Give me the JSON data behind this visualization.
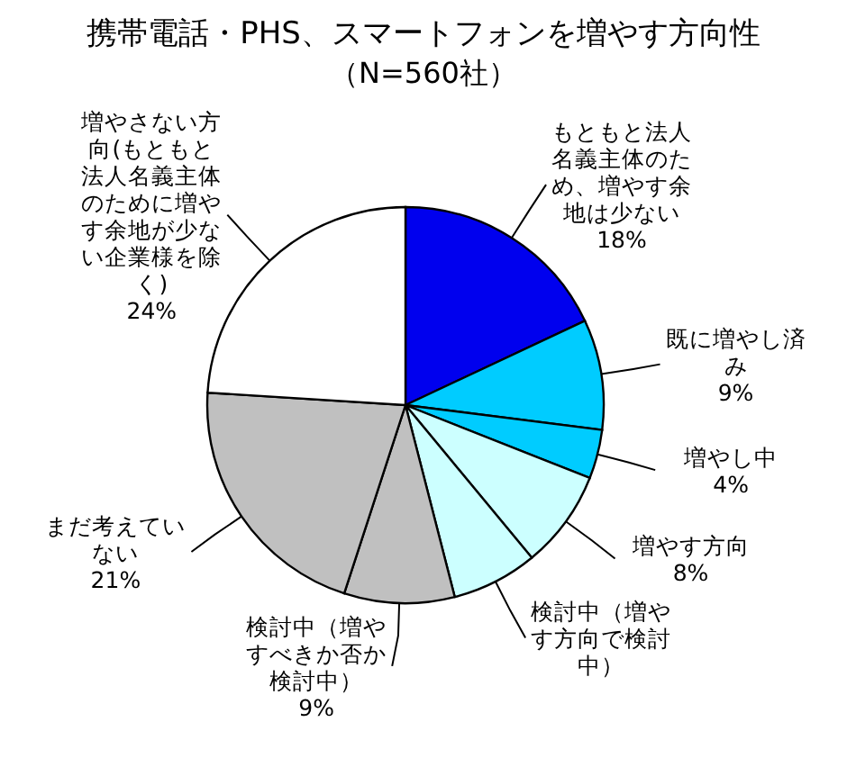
{
  "chart_data": {
    "type": "pie",
    "title": "携帯電話・PHS、スマートフォンを増やす方向性",
    "subtitle": "（N=560社）",
    "categories": [
      "もともと法人名義主体のため、増やす余地は少ない",
      "既に増やし済み",
      "増やし中",
      "増やす方向",
      "検討中（増やす方向で検討中）",
      "検討中（増やすべきか否か検討中）",
      "まだ考えていない",
      "増やさない方向(もともと法人名義主体のために増やす余地が少ない企業様を除く)"
    ],
    "values": [
      18,
      9,
      4,
      8,
      7,
      9,
      21,
      24
    ],
    "colors": [
      "#0000ee",
      "#00ccff",
      "#00ccff",
      "#ccffff",
      "#ccffff",
      "#c0c0c0",
      "#c0c0c0",
      "#ffffff"
    ],
    "value_labels": [
      "18%",
      "9%",
      "4%",
      "8%",
      null,
      "9%",
      "21%",
      "24%"
    ]
  }
}
